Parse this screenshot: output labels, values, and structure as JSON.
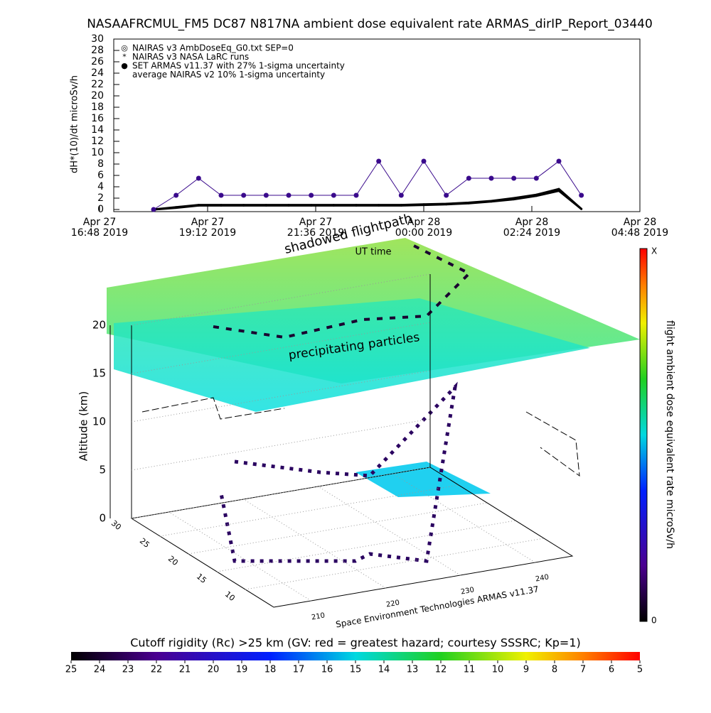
{
  "chart_data": [
    {
      "type": "line",
      "title": "NASAAFRCMUL_FM5 DC87 N817NA ambient dose equivalent rate ARMAS_dirIP_Report_03440",
      "ylabel": "dH*(10)/dt microSv/h",
      "x": [
        "2019-04-27T18:00",
        "2019-04-27T18:30",
        "2019-04-27T19:00",
        "2019-04-27T19:30",
        "2019-04-27T20:00",
        "2019-04-27T20:30",
        "2019-04-27T21:00",
        "2019-04-27T21:30",
        "2019-04-27T22:00",
        "2019-04-27T22:30",
        "2019-04-27T23:00",
        "2019-04-27T23:30",
        "2019-04-28T00:00",
        "2019-04-28T00:30",
        "2019-04-28T01:00",
        "2019-04-28T01:30",
        "2019-04-28T02:00",
        "2019-04-28T02:30",
        "2019-04-28T03:00",
        "2019-04-28T03:30"
      ],
      "series": [
        {
          "name": "NAIRAS v3 AmbDoseEq_G0.txt SEP=0",
          "color": "#000000",
          "values": [
            0,
            0.4,
            0.8,
            0.8,
            0.8,
            0.8,
            0.8,
            0.8,
            0.8,
            0.8,
            0.8,
            0.8,
            0.9,
            1.0,
            1.2,
            1.5,
            2.0,
            2.6,
            3.6,
            0.1
          ]
        },
        {
          "name": "NAIRAS v3 NASA LaRC runs",
          "color": "#000000",
          "values": [
            0,
            0.3,
            0.7,
            0.7,
            0.7,
            0.7,
            0.7,
            0.7,
            0.7,
            0.7,
            0.7,
            0.7,
            0.8,
            0.9,
            1.1,
            1.4,
            1.8,
            2.4,
            3.3,
            0.1
          ]
        },
        {
          "name": "SET ARMAS v11.37 with 27% 1-sigma uncertainty",
          "color": "#3a0a8c",
          "values": [
            0,
            2.5,
            5.5,
            2.5,
            2.5,
            2.5,
            2.5,
            2.5,
            2.5,
            2.5,
            8.5,
            2.5,
            8.5,
            2.5,
            5.5,
            5.5,
            5.5,
            5.5,
            8.5,
            2.5
          ]
        }
      ],
      "legend_notes": [
        "average NAIRAS v2 10% 1-sigma uncertainty"
      ],
      "xlim": [
        "2019-04-27T16:48",
        "2019-04-28T04:48"
      ],
      "xticks": [
        {
          "value": "2019-04-27T16:48",
          "label": [
            "Apr 27",
            "16:48 2019"
          ]
        },
        {
          "value": "2019-04-27T19:12",
          "label": [
            "Apr 27",
            "19:12 2019"
          ]
        },
        {
          "value": "2019-04-27T21:36",
          "label": [
            "Apr 27",
            "21:36 2019"
          ]
        },
        {
          "value": "2019-04-28T00:00",
          "label": [
            "Apr 28",
            "00:00 2019"
          ]
        },
        {
          "value": "2019-04-28T02:24",
          "label": [
            "Apr 28",
            "02:24 2019"
          ]
        },
        {
          "value": "2019-04-28T04:48",
          "label": [
            "Apr 28",
            "04:48 2019"
          ]
        }
      ],
      "ylim": [
        0,
        30
      ],
      "yticks": [
        0,
        2,
        4,
        6,
        8,
        10,
        12,
        14,
        16,
        18,
        20,
        22,
        24,
        26,
        28,
        30
      ]
    },
    {
      "type": "surface3d",
      "zlabel": "Altitude (km)",
      "xlim": [
        205,
        245
      ],
      "xticks": [
        210,
        220,
        230,
        240
      ],
      "ylim": [
        5,
        30
      ],
      "yticks": [
        10,
        15,
        20,
        25,
        30
      ],
      "zlim": [
        0,
        20
      ],
      "zticks": [
        0,
        5,
        10,
        15,
        20
      ],
      "annotations": [
        "shadowed flightpath",
        "UT time",
        "precipitating particles"
      ],
      "credit": "Space Environment Technologies ARMAS v11.37",
      "colorbar": {
        "label": "flight ambient dose equivalent rate microSv/h",
        "top": "X",
        "bottom": "0"
      }
    },
    {
      "type": "colorbar",
      "title": "Cutoff rigidity (Rc) >25 km (GV: red = greatest hazard; courtesy SSSRC; Kp=1)",
      "xlim": [
        25,
        5
      ],
      "xticks": [
        25,
        24,
        23,
        22,
        21,
        20,
        19,
        18,
        17,
        16,
        15,
        14,
        13,
        12,
        11,
        10,
        9,
        8,
        7,
        6,
        5
      ]
    }
  ]
}
